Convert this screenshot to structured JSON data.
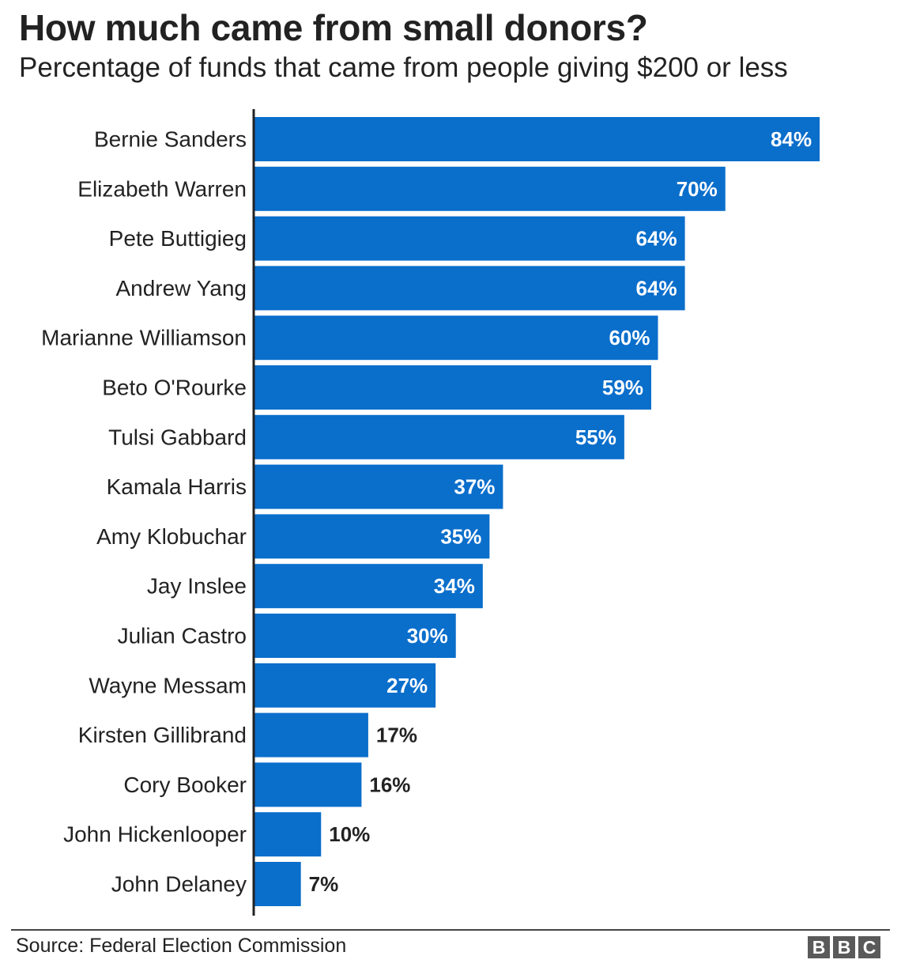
{
  "title": "How much came from small donors?",
  "subtitle": "Percentage of funds that came from people giving $200 or less",
  "source": "Source: Federal Election Commission",
  "logo": [
    "B",
    "B",
    "C"
  ],
  "colors": {
    "bar": "#0a6ecb",
    "label_inside": "#ffffff",
    "label_outside": "#222222",
    "axis": "#222222"
  },
  "chart_data": {
    "type": "bar",
    "orientation": "horizontal",
    "title": "How much came from small donors?",
    "subtitle": "Percentage of funds that came from people giving $200 or less",
    "categories": [
      "Bernie Sanders",
      "Elizabeth Warren",
      "Pete Buttigieg",
      "Andrew Yang",
      "Marianne Williamson",
      "Beto O'Rourke",
      "Tulsi Gabbard",
      "Kamala Harris",
      "Amy Klobuchar",
      "Jay Inslee",
      "Julian Castro",
      "Wayne Messam",
      "Kirsten Gillibrand",
      "Cory Booker",
      "John Hickenlooper",
      "John Delaney"
    ],
    "values": [
      84,
      70,
      64,
      64,
      60,
      59,
      55,
      37,
      35,
      34,
      30,
      27,
      17,
      16,
      10,
      7
    ],
    "value_labels": [
      "84%",
      "70%",
      "64%",
      "64%",
      "60%",
      "59%",
      "55%",
      "37%",
      "35%",
      "34%",
      "30%",
      "27%",
      "17%",
      "16%",
      "10%",
      "7%"
    ],
    "unit": "%",
    "xlim": [
      0,
      100
    ],
    "grid": false,
    "legend": "none"
  }
}
